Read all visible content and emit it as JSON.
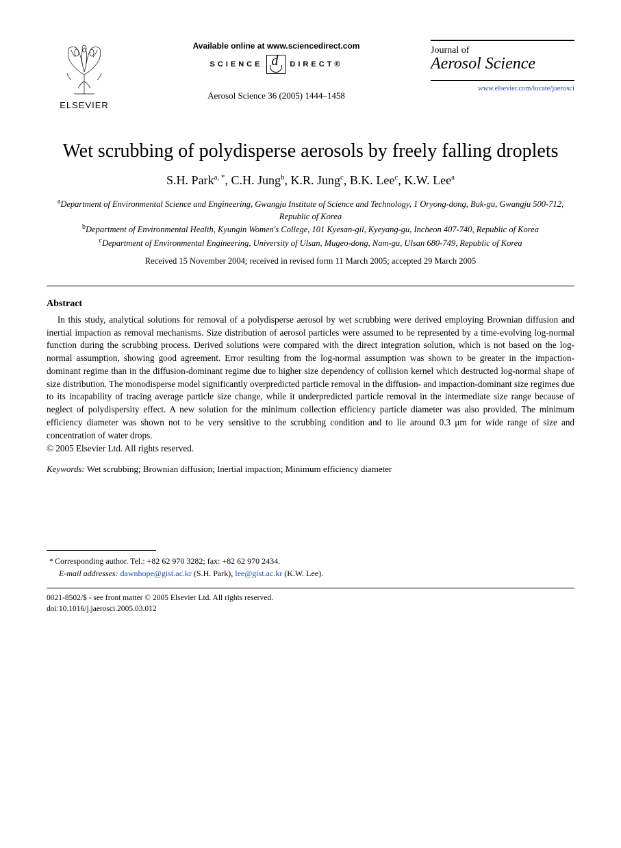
{
  "header": {
    "publisher_label": "ELSEVIER",
    "available_online": "Available online at www.sciencedirect.com",
    "sd_left": "SCIENCE",
    "sd_right": "DIRECT®",
    "citation": "Aerosol Science 36 (2005) 1444–1458",
    "journal_of": "Journal of",
    "journal_name": "Aerosol Science",
    "journal_url": "www.elsevier.com/locate/jaerosci"
  },
  "title": "Wet scrubbing of polydisperse aerosols by freely falling droplets",
  "authors_html": "S.H. Park<sup>a, *</sup>, C.H. Jung<sup>b</sup>, K.R. Jung<sup>c</sup>, B.K. Lee<sup>c</sup>, K.W. Lee<sup>a</sup>",
  "affiliations": {
    "a": "Department of Environmental Science and Engineering, Gwangju Institute of Science and Technology, 1 Oryong-dong, Buk-gu, Gwangju 500-712, Republic of Korea",
    "b": "Department of Environmental Health, Kyungin Women's College, 101 Kyesan-gil, Kyeyang-gu, Incheon 407-740, Republic of Korea",
    "c": "Department of Environmental Engineering, University of Ulsan, Mugeo-dong, Nam-gu, Ulsan 680-749, Republic of Korea"
  },
  "dates": "Received 15 November 2004; received in revised form 11 March 2005; accepted 29 March 2005",
  "abstract_heading": "Abstract",
  "abstract_body": "In this study, analytical solutions for removal of a polydisperse aerosol by wet scrubbing were derived employing Brownian diffusion and inertial impaction as removal mechanisms. Size distribution of aerosol particles were assumed to be represented by a time-evolving log-normal function during the scrubbing process. Derived solutions were compared with the direct integration solution, which is not based on the log-normal assumption, showing good agreement. Error resulting from the log-normal assumption was shown to be greater in the impaction-dominant regime than in the diffusion-dominant regime due to higher size dependency of collision kernel which destructed log-normal shape of size distribution. The monodisperse model significantly overpredicted particle removal in the diffusion- and impaction-dominant size regimes due to its incapability of tracing average particle size change, while it underpredicted particle removal in the intermediate size range because of neglect of polydispersity effect. A new solution for the minimum collection efficiency particle diameter was also provided. The minimum efficiency diameter was shown not to be very sensitive to the scrubbing condition and to lie around 0.3 μm for wide range of size and concentration of water drops.",
  "copyright": "© 2005 Elsevier Ltd. All rights reserved.",
  "keywords_label": "Keywords:",
  "keywords_text": " Wet scrubbing; Brownian diffusion; Inertial impaction; Minimum efficiency diameter",
  "footnote": {
    "corr": "Corresponding author. Tel.: +82 62 970 3282; fax: +82 62 970 2434.",
    "email_label": "E-mail addresses:",
    "email1": "dawnhope@gist.ac.kr",
    "email1_who": " (S.H. Park), ",
    "email2": "lee@gist.ac.kr",
    "email2_who": " (K.W. Lee)."
  },
  "bottom": {
    "line1": "0021-8502/$ - see front matter © 2005 Elsevier Ltd. All rights reserved.",
    "line2": "doi:10.1016/j.jaerosci.2005.03.012"
  }
}
